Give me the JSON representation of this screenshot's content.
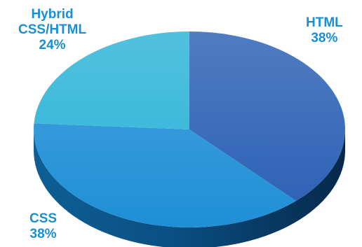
{
  "chart_data": {
    "type": "pie",
    "style": "3d",
    "categories": [
      "HTML",
      "CSS",
      "Hybrid CSS/HTML"
    ],
    "values": [
      38,
      38,
      24
    ],
    "labels": [
      {
        "name_lines": [
          "HTML"
        ],
        "value_text": "38%"
      },
      {
        "name_lines": [
          "CSS"
        ],
        "value_text": "38%"
      },
      {
        "name_lines": [
          "Hybrid",
          "CSS/HTML"
        ],
        "value_text": "24%"
      }
    ],
    "colors": {
      "HTML": "#2a5fb4",
      "CSS": "#1f8fd6",
      "Hybrid CSS/HTML": "#2bb3d6"
    },
    "label_color": "#1a8fd0"
  }
}
